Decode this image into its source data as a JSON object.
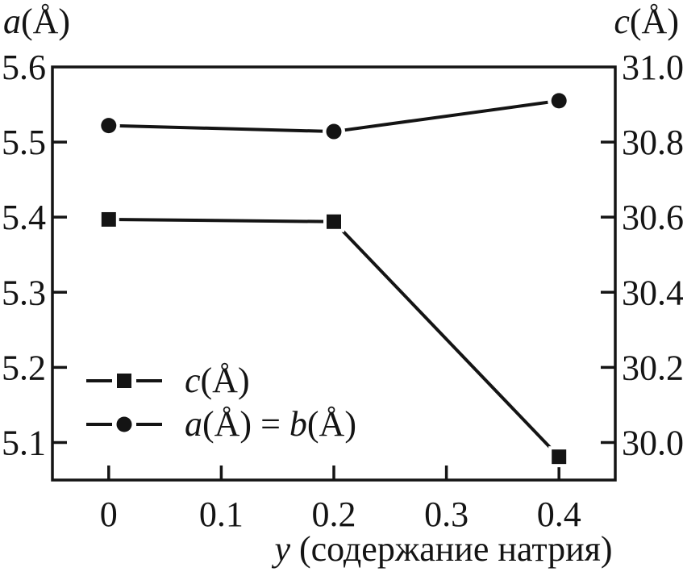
{
  "figure": {
    "background": "#ffffff",
    "ink": "#141414"
  },
  "left_axis": {
    "title_var": "a",
    "title_unit": "(Å)"
  },
  "right_axis": {
    "title_var": "c",
    "title_unit": "(Å)"
  },
  "x_axis": {
    "label_var": "y",
    "label_rest": " (содержание натрия)"
  },
  "legend": {
    "rows": [
      {
        "marker": "square",
        "var1": "c",
        "rest1": "(Å)",
        "var2": "",
        "rest2": ""
      },
      {
        "marker": "circle",
        "var1": "a",
        "rest1": "(Å) = ",
        "var2": "b",
        "rest2": "(Å)"
      }
    ]
  },
  "chart_data": {
    "type": "line",
    "title": "",
    "xlabel": "y (содержание натрия)",
    "left_axis_label": "a(Å)",
    "right_axis_label": "c(Å)",
    "x": [
      0,
      0.2,
      0.4
    ],
    "series": [
      {
        "name": "c(Å)",
        "axis": "right",
        "marker": "square",
        "color": "#141414",
        "values": [
          30.594,
          30.588,
          29.962
        ]
      },
      {
        "name": "a(Å) = b(Å)",
        "axis": "left",
        "marker": "circle",
        "color": "#141414",
        "values": [
          5.522,
          5.514,
          5.555
        ]
      }
    ],
    "x_ticks": [
      0,
      0.1,
      0.2,
      0.3,
      0.4
    ],
    "x_tick_labels": [
      "0",
      "0.1",
      "0.2",
      "0.3",
      "0.4"
    ],
    "xlim": [
      -0.05,
      0.45
    ],
    "left_ticks": [
      5.1,
      5.2,
      5.3,
      5.4,
      5.5,
      5.6
    ],
    "left_tick_labels": [
      "5.1",
      "5.2",
      "5.3",
      "5.4",
      "5.5",
      "5.6"
    ],
    "left_ylim": [
      5.05,
      5.6
    ],
    "right_ticks": [
      30.0,
      30.2,
      30.4,
      30.6,
      30.8,
      31.0
    ],
    "right_tick_labels": [
      "30.0",
      "30.2",
      "30.4",
      "30.6",
      "30.8",
      "31.0"
    ],
    "right_ylim": [
      29.9,
      31.0
    ],
    "grid": false,
    "legend_position": "lower-left",
    "frame": true
  }
}
